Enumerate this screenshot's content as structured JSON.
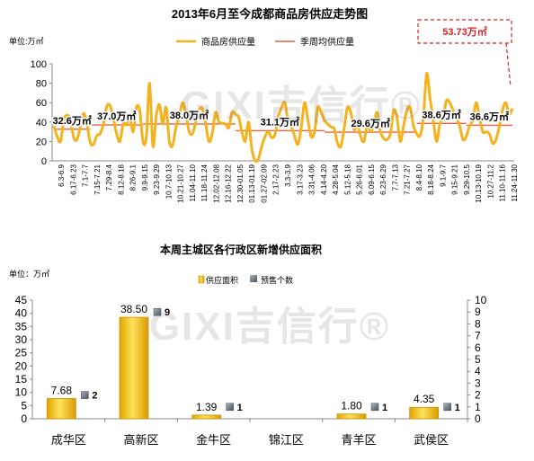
{
  "chart_data": [
    {
      "type": "line",
      "title": "2013年6月至今成都商品房供应走势图",
      "unit_label": "单位:万㎡",
      "ylim": [
        0,
        100
      ],
      "yticks": [
        0,
        20,
        40,
        60,
        80,
        100
      ],
      "grid": false,
      "legend_position": "top-center",
      "legend": [
        "商品房供应量",
        "季周均供应量"
      ],
      "callout": "53.73万㎡",
      "colors": {
        "supply": "#f5b21e",
        "avg": "#e8643c",
        "callout": "#e02020"
      },
      "x_ticks": [
        "6.3-6.9",
        "6.17-6.23",
        "7.1-7.7",
        "7.15-7.21",
        "7.29-8.4",
        "8.12-8.18",
        "8.26-9.1",
        "9.9-9.15",
        "9.23-9.29",
        "10.7-10.13",
        "10.21-10.27",
        "11.04-11.10",
        "11.18-11.24",
        "12.02-12.08",
        "12.16-12.22",
        "12.30-01.05",
        "01.13-01.19",
        "01.27-02.09",
        "2.17-2.23",
        "3.3-3.9",
        "3.17-3.23",
        "3.31-4.06",
        "4.14-4.20",
        "4.28-5.04",
        "5.12-5.18",
        "5.26-6.01",
        "6.09-6.15",
        "6.23-6.29",
        "7.7-7.13",
        "7.21-7.27",
        "8.4-8.10",
        "8.18-8.24",
        "9.1-9.7",
        "9.15-9.21",
        "9.29-10.5",
        "10.13-10.19",
        "10.27-11.2",
        "11.10-11.16",
        "11.24-11.30"
      ],
      "series": [
        {
          "name": "商品房供应量",
          "values": [
            36,
            25,
            20,
            42,
            47,
            43,
            24,
            22,
            35,
            49,
            38,
            19,
            17,
            26,
            28,
            38,
            56,
            57,
            44,
            28,
            20,
            38,
            37,
            45,
            30,
            55,
            52,
            20,
            24,
            80,
            15,
            46,
            58,
            38,
            55,
            20,
            16,
            35,
            45,
            60,
            48,
            30,
            28,
            40,
            52,
            54,
            38,
            20,
            28,
            50,
            40,
            39,
            38,
            34,
            50,
            48,
            45,
            30,
            20,
            40,
            12,
            0,
            2,
            15,
            25,
            30,
            24,
            27,
            45,
            55,
            60,
            40,
            35,
            25,
            17,
            35,
            60,
            42,
            25,
            30,
            55,
            50,
            42,
            38,
            35,
            33,
            18,
            15,
            34,
            55,
            50,
            32,
            37,
            25,
            20,
            38,
            30,
            38,
            50,
            30,
            23,
            22,
            28,
            52,
            45,
            20,
            36,
            52,
            55,
            36,
            28,
            26,
            45,
            90,
            65,
            42,
            20,
            38,
            45,
            62,
            60,
            52,
            45,
            36,
            22,
            25,
            36,
            42,
            60,
            45,
            30,
            30,
            28,
            18,
            22,
            35,
            52,
            60,
            48,
            54
          ]
        },
        {
          "name": "季周均供应量",
          "segments": [
            {
              "x": [
                0,
                11
              ],
              "value": 32.6,
              "label": "32.6万㎡"
            },
            {
              "x": [
                11,
                27
              ],
              "value": 37.0,
              "label": "37.0万㎡"
            },
            {
              "x": [
                27,
                55
              ],
              "value": 38.0,
              "label": "38.0万㎡"
            },
            {
              "x": [
                55,
                82
              ],
              "value": 31.1,
              "label": "31.1万㎡"
            },
            {
              "x": [
                82,
                110
              ],
              "value": 29.6,
              "label": "29.6万㎡"
            },
            {
              "x": [
                110,
                125
              ],
              "value": 38.6,
              "label": "38.6万㎡"
            },
            {
              "x": [
                125,
                139
              ],
              "value": 36.6,
              "label": "36.6万㎡"
            }
          ]
        }
      ]
    },
    {
      "type": "bar",
      "title": "本周主城区各行政区新增供应面积",
      "unit_label": "单位：万㎡",
      "categories": [
        "成华区",
        "高新区",
        "金牛区",
        "锦江区",
        "青羊区",
        "武侯区"
      ],
      "ylim": [
        0,
        45
      ],
      "yticks": [
        0,
        5,
        10,
        15,
        20,
        25,
        30,
        35,
        40,
        45
      ],
      "y2lim": [
        0,
        10
      ],
      "y2ticks": [
        0,
        1,
        2,
        3,
        4,
        5,
        6,
        7,
        8,
        9,
        10
      ],
      "legend_position": "top-center",
      "series": [
        {
          "name": "供应面积",
          "axis": "left",
          "values": [
            7.68,
            38.5,
            1.39,
            0,
            1.8,
            4.35
          ],
          "labels": [
            "7.68",
            "38.50",
            "1.39",
            "",
            "1.80",
            "4.35"
          ]
        },
        {
          "name": "预售个数",
          "axis": "right",
          "values": [
            2,
            9,
            1,
            null,
            1,
            1
          ],
          "labels": [
            "2",
            "9",
            "1",
            "",
            "1",
            "1"
          ]
        }
      ],
      "colors": {
        "bar": "#f2c21a",
        "bar_edge": "#c99400",
        "marker": "#6f7c88"
      }
    }
  ],
  "watermark": "GIXI吉信行®"
}
